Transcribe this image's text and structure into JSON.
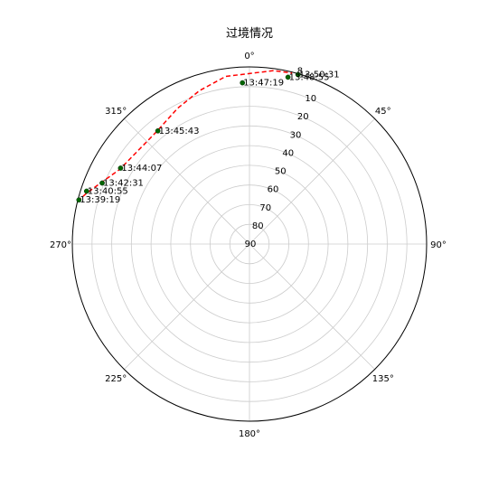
{
  "chart_data": {
    "type": "scatter",
    "projection": "polar",
    "title": "过境情况",
    "theta_zero_location": "N",
    "theta_direction": "clockwise",
    "theta_tick_labels": [
      "0°",
      "45°",
      "90°",
      "135°",
      "180°",
      "225°",
      "270°",
      "315°"
    ],
    "r_ticks": [
      10,
      20,
      30,
      40,
      50,
      60,
      70,
      80,
      90
    ],
    "r_axis": "elevation",
    "r_range": [
      0,
      90
    ],
    "r_tick_label_angle_deg": 22.5,
    "grid": true,
    "series": [
      {
        "kind": "track",
        "style": "dashed",
        "color": "#ff0000",
        "points": [
          {
            "az": 284,
            "el": 0
          },
          {
            "az": 287,
            "el": 3
          },
          {
            "az": 292,
            "el": 8
          },
          {
            "az": 300,
            "el": 14
          },
          {
            "az": 309,
            "el": 16
          },
          {
            "az": 320,
            "el": 16
          },
          {
            "az": 332,
            "el": 12
          },
          {
            "az": 342,
            "el": 8
          },
          {
            "az": 352,
            "el": 4
          },
          {
            "az": 8,
            "el": 1
          },
          {
            "az": 14,
            "el": 0.5
          }
        ]
      },
      {
        "kind": "markers",
        "color": "#006400",
        "points": [
          {
            "label": "13:39:19",
            "az": 284.5,
            "el": 0.5
          },
          {
            "label": "13:40:55",
            "az": 288,
            "el": 3
          },
          {
            "label": "13:42:31",
            "az": 292.5,
            "el": 9
          },
          {
            "label": "13:44:07",
            "az": 300.5,
            "el": 14
          },
          {
            "label": "13:45:43",
            "az": 321,
            "el": 16
          },
          {
            "label": "13:47:19",
            "az": 357.5,
            "el": 8
          },
          {
            "label": "13:48:55",
            "az": 13,
            "el": 3
          },
          {
            "label": "13:50:31",
            "az": 16,
            "el": 0.5
          }
        ]
      }
    ],
    "overlap_label_fragment": "8"
  }
}
